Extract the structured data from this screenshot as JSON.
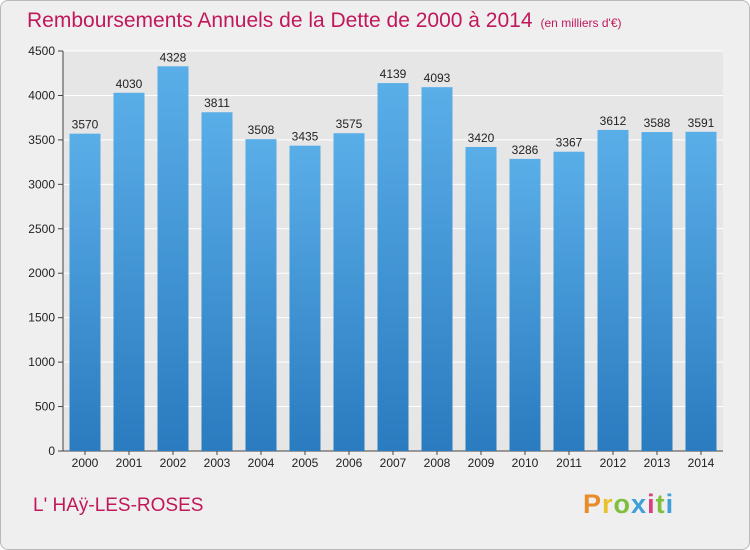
{
  "header": {
    "title": "Remboursements Annuels de la Dette de 2000 à 2014",
    "unit": "(en milliers d'€)"
  },
  "footer": {
    "commune": "L' HAÿ-LES-ROSES",
    "brand": "Proxiti",
    "brand_colors": [
      "#e98b2a",
      "#e9c12a",
      "#7fbf3f",
      "#3f9fd8",
      "#d9407f",
      "#7fbf3f",
      "#3f9fd8"
    ]
  },
  "colors": {
    "bar_top": "#5aaee8",
    "bar_bottom": "#2a7bbf",
    "grid": "#ffffff",
    "accent": "#c2185b"
  },
  "chart_data": {
    "type": "bar",
    "title": "Remboursements Annuels de la Dette de 2000 à 2014",
    "subtitle": "(en milliers d'€)",
    "categories": [
      "2000",
      "2001",
      "2002",
      "2003",
      "2004",
      "2005",
      "2006",
      "2007",
      "2008",
      "2009",
      "2010",
      "2011",
      "2012",
      "2013",
      "2014"
    ],
    "values": [
      3570,
      4030,
      4328,
      3811,
      3508,
      3435,
      3575,
      4139,
      4093,
      3420,
      3286,
      3367,
      3612,
      3588,
      3591
    ],
    "ylim": [
      0,
      4500
    ],
    "yticks": [
      0,
      500,
      1000,
      1500,
      2000,
      2500,
      3000,
      3500,
      4000,
      4500
    ],
    "grid": true,
    "xlabel": "",
    "ylabel": ""
  }
}
